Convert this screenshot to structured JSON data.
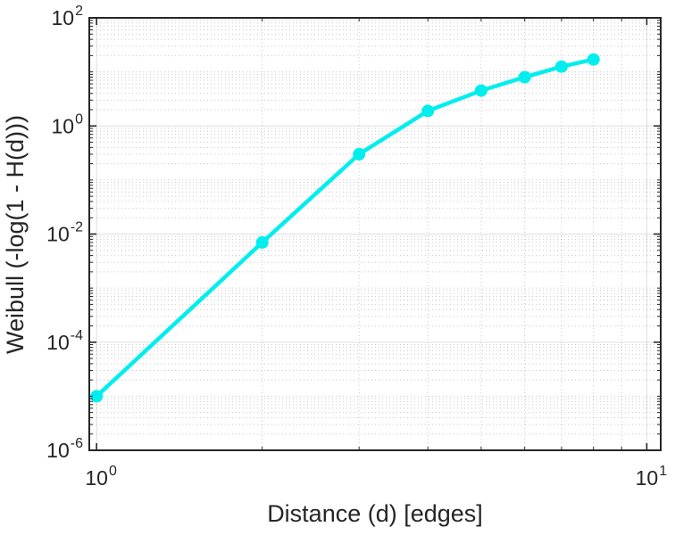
{
  "chart_data": {
    "type": "line",
    "title": "",
    "xlabel": "Distance (d) [edges]",
    "ylabel": "Weibull (-log(1 - H(d)))",
    "x_scale": "log",
    "y_scale": "log",
    "x": [
      1,
      2,
      3,
      4,
      5,
      6,
      7,
      8
    ],
    "y": [
      1e-05,
      0.007,
      0.3,
      1.9,
      4.5,
      8,
      12.5,
      17
    ],
    "xlim": [
      0.97,
      10.6
    ],
    "ylim": [
      1e-06,
      100
    ],
    "x_tick_exponents": [
      0,
      1
    ],
    "y_tick_exponents": [
      -6,
      -4,
      -2,
      0,
      2
    ],
    "x_tick_labels": [
      "10^0",
      "10^1"
    ],
    "y_tick_labels": [
      "10^2",
      "10^0",
      "10^-2",
      "10^-4",
      "10^-6"
    ],
    "grid": "on",
    "minor_grid": "on",
    "legend": "none",
    "line_color": "#00eeee",
    "marker": "filled-circle",
    "axis_color": "#262626",
    "grid_color": "#262626",
    "grid_alpha": 0.15,
    "minor_grid_alpha": 0.25
  }
}
